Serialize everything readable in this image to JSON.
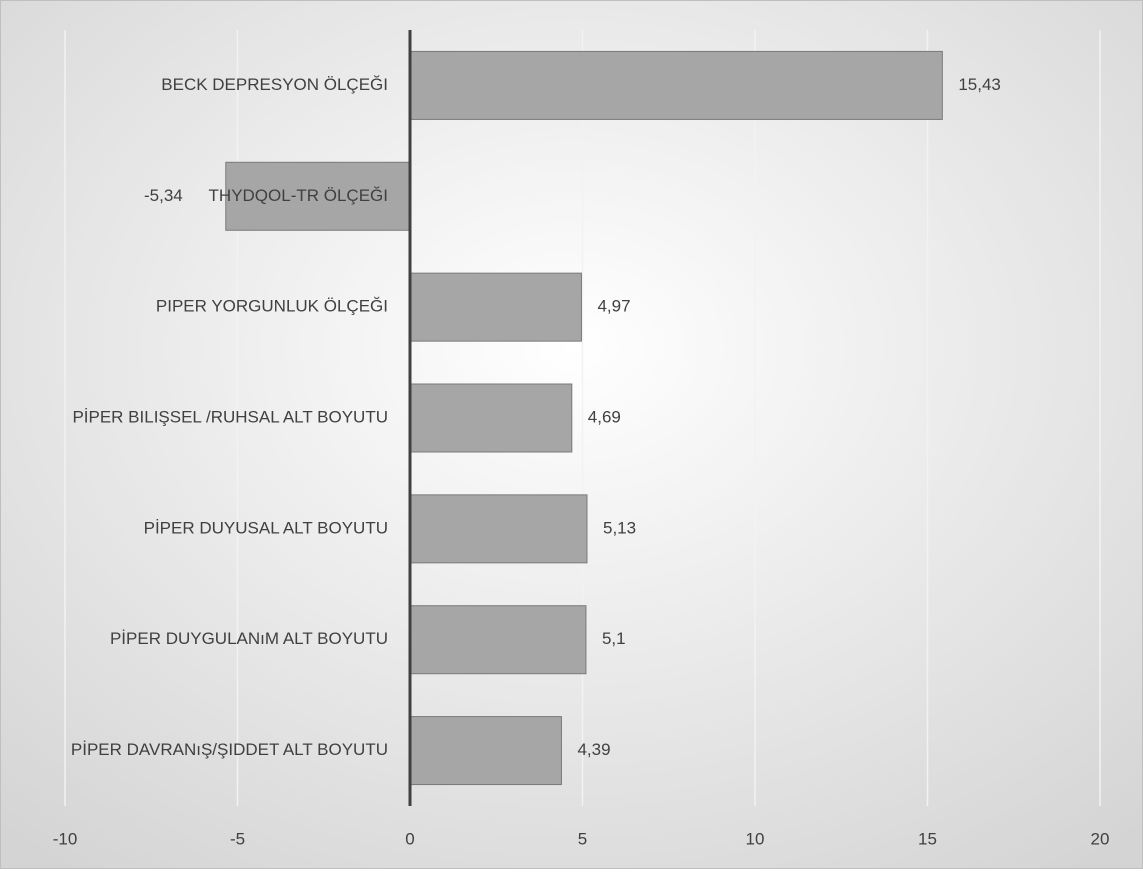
{
  "chart_data": {
    "type": "bar",
    "orientation": "horizontal",
    "categories": [
      "BECK DEPRESYON ÖLÇEĞI",
      "THYDQOL-TR ÖLÇEĞI",
      "PIPER YORGUNLUK ÖLÇEĞI",
      "PİPER BILIŞSEL /RUHSAL ALT BOYUTU",
      "PİPER DUYUSAL ALT BOYUTU",
      "PİPER DUYGULANıM ALT BOYUTU",
      "PİPER DAVRANıŞ/ŞIDDET ALT BOYUTU"
    ],
    "values": [
      15.43,
      -5.34,
      4.97,
      4.69,
      5.13,
      5.1,
      4.39
    ],
    "value_labels": [
      "15,43",
      "-5,34",
      "4,97",
      "4,69",
      "5,13",
      "5,1",
      "4,39"
    ],
    "color": "#a6a6a6",
    "xlim": [
      -10,
      20
    ],
    "xticks": [
      -10,
      -5,
      0,
      5,
      10,
      15,
      20
    ],
    "grid": true
  }
}
